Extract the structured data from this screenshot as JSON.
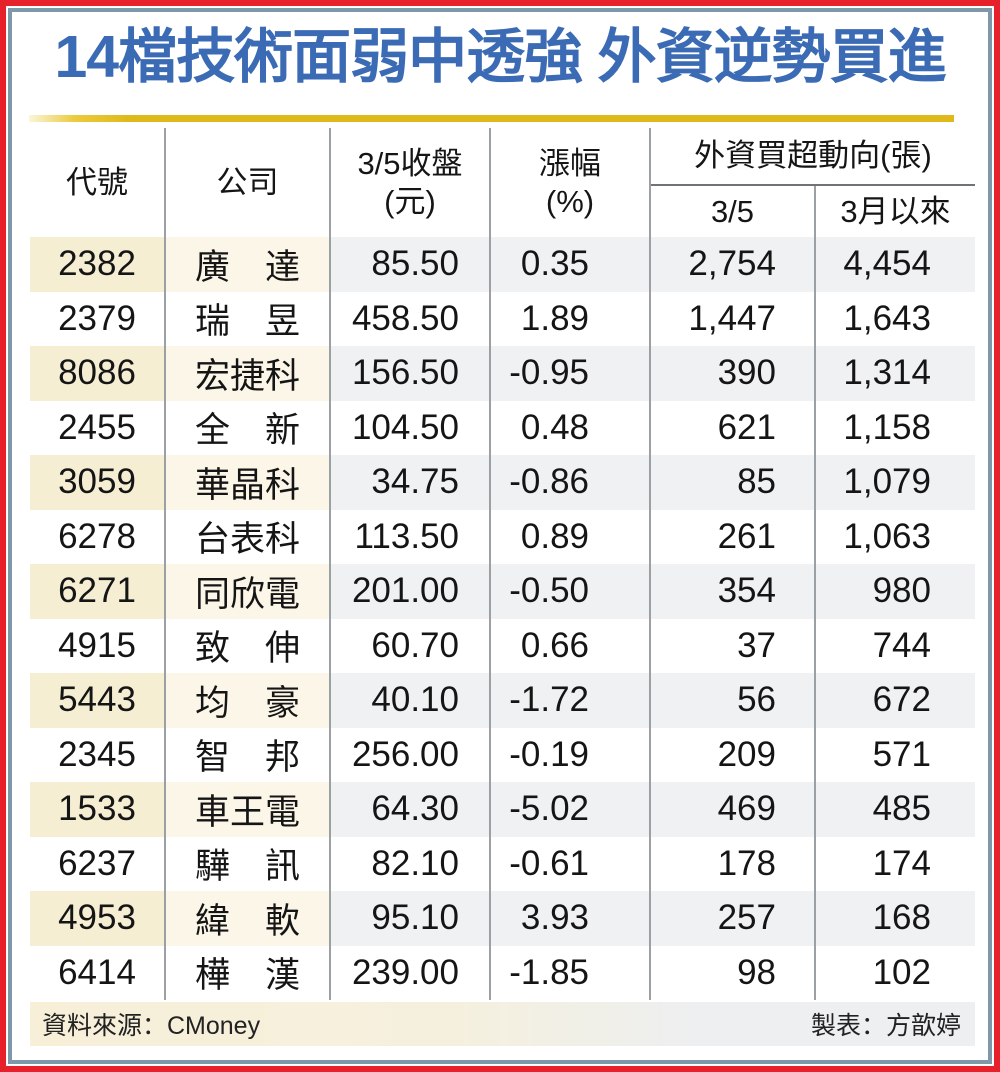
{
  "title": "14檔技術面弱中透強 外資逆勢買進",
  "table": {
    "headers": {
      "code": "代號",
      "company": "公司",
      "close_line1": "3/5收盤",
      "close_line2": "(元)",
      "change_line1": "漲幅",
      "change_line2": "(%)",
      "foreign_group": "外資買超動向(張)",
      "foreign_day": "3/5",
      "foreign_month": "3月以來"
    },
    "rows": [
      {
        "code": "2382",
        "company": "廣　達",
        "close": "85.50",
        "change": "0.35",
        "day": "2,754",
        "month": "4,454"
      },
      {
        "code": "2379",
        "company": "瑞　昱",
        "close": "458.50",
        "change": "1.89",
        "day": "1,447",
        "month": "1,643"
      },
      {
        "code": "8086",
        "company": "宏捷科",
        "close": "156.50",
        "change": "-0.95",
        "day": "390",
        "month": "1,314"
      },
      {
        "code": "2455",
        "company": "全　新",
        "close": "104.50",
        "change": "0.48",
        "day": "621",
        "month": "1,158"
      },
      {
        "code": "3059",
        "company": "華晶科",
        "close": "34.75",
        "change": "-0.86",
        "day": "85",
        "month": "1,079"
      },
      {
        "code": "6278",
        "company": "台表科",
        "close": "113.50",
        "change": "0.89",
        "day": "261",
        "month": "1,063"
      },
      {
        "code": "6271",
        "company": "同欣電",
        "close": "201.00",
        "change": "-0.50",
        "day": "354",
        "month": "980"
      },
      {
        "code": "4915",
        "company": "致　伸",
        "close": "60.70",
        "change": "0.66",
        "day": "37",
        "month": "744"
      },
      {
        "code": "5443",
        "company": "均　豪",
        "close": "40.10",
        "change": "-1.72",
        "day": "56",
        "month": "672"
      },
      {
        "code": "2345",
        "company": "智　邦",
        "close": "256.00",
        "change": "-0.19",
        "day": "209",
        "month": "571"
      },
      {
        "code": "1533",
        "company": "車王電",
        "close": "64.30",
        "change": "-5.02",
        "day": "469",
        "month": "485"
      },
      {
        "code": "6237",
        "company": "驊　訊",
        "close": "82.10",
        "change": "-0.61",
        "day": "178",
        "month": "174"
      },
      {
        "code": "4953",
        "company": "緯　軟",
        "close": "95.10",
        "change": "3.93",
        "day": "257",
        "month": "168"
      },
      {
        "code": "6414",
        "company": "樺　漢",
        "close": "239.00",
        "change": "-1.85",
        "day": "98",
        "month": "102"
      }
    ]
  },
  "footer": {
    "source": "資料來源：CMoney",
    "credit": "製表：方歆婷"
  },
  "colors": {
    "title_blue": "#3b6bb4",
    "frame_red": "#e62129",
    "frame_slate": "#7e97a9",
    "gold_bar": "#dfb91a",
    "stripe_code": "#f6eed3",
    "stripe_company": "#fbf6e8",
    "stripe_numeric": "#eff1f2",
    "separator_gray": "#9aa0a4"
  },
  "chart_data": {
    "type": "table",
    "title": "14檔技術面弱中透強 外資逆勢買進",
    "columns": [
      "代號",
      "公司",
      "3/5收盤(元)",
      "漲幅(%)",
      "外資買超動向(張) 3/5",
      "外資買超動向(張) 3月以來"
    ],
    "rows": [
      [
        "2382",
        "廣達",
        85.5,
        0.35,
        2754,
        4454
      ],
      [
        "2379",
        "瑞昱",
        458.5,
        1.89,
        1447,
        1643
      ],
      [
        "8086",
        "宏捷科",
        156.5,
        -0.95,
        390,
        1314
      ],
      [
        "2455",
        "全新",
        104.5,
        0.48,
        621,
        1158
      ],
      [
        "3059",
        "華晶科",
        34.75,
        -0.86,
        85,
        1079
      ],
      [
        "6278",
        "台表科",
        113.5,
        0.89,
        261,
        1063
      ],
      [
        "6271",
        "同欣電",
        201.0,
        -0.5,
        354,
        980
      ],
      [
        "4915",
        "致伸",
        60.7,
        0.66,
        37,
        744
      ],
      [
        "5443",
        "均豪",
        40.1,
        -1.72,
        56,
        672
      ],
      [
        "2345",
        "智邦",
        256.0,
        -0.19,
        209,
        571
      ],
      [
        "1533",
        "車王電",
        64.3,
        -5.02,
        469,
        485
      ],
      [
        "6237",
        "驊訊",
        82.1,
        -0.61,
        178,
        174
      ],
      [
        "4953",
        "緯軟",
        95.1,
        3.93,
        257,
        168
      ],
      [
        "6414",
        "樺漢",
        239.0,
        -1.85,
        98,
        102
      ]
    ],
    "source": "資料來源：CMoney",
    "credit": "製表：方歆婷"
  }
}
